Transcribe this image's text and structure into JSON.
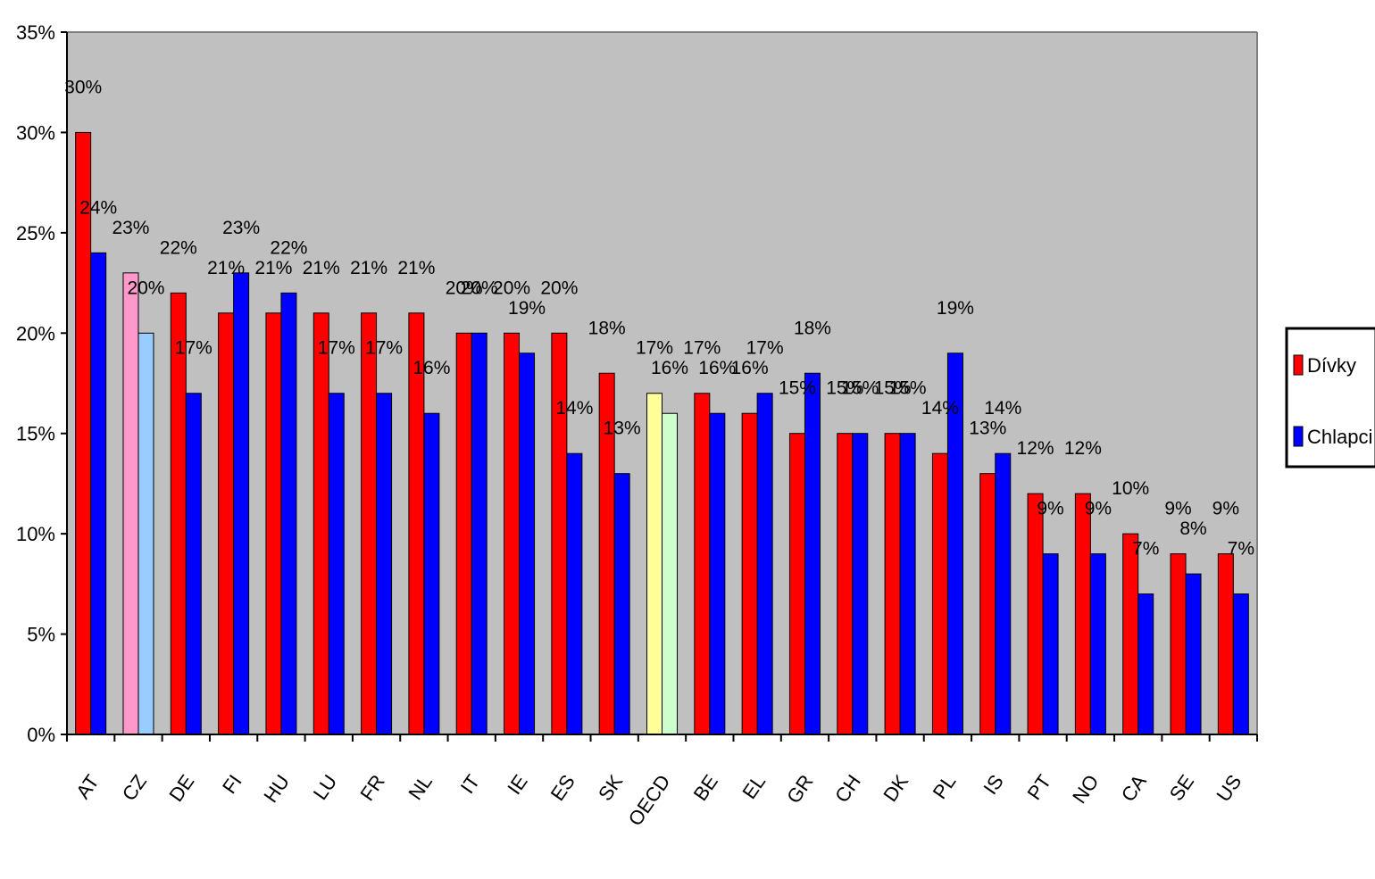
{
  "chart_data": {
    "type": "bar",
    "title": "",
    "xlabel": "",
    "ylabel": "",
    "ylim": [
      0,
      35
    ],
    "yticks": [
      "0%",
      "5%",
      "10%",
      "15%",
      "20%",
      "25%",
      "30%",
      "35%"
    ],
    "grid": false,
    "legend_position": "right",
    "categories": [
      "AT",
      "CZ",
      "DE",
      "FI",
      "HU",
      "LU",
      "FR",
      "NL",
      "IT",
      "IE",
      "ES",
      "SK",
      "OECD",
      "BE",
      "EL",
      "GR",
      "CH",
      "DK",
      "PL",
      "IS",
      "PT",
      "NO",
      "CA",
      "SE",
      "US"
    ],
    "series": [
      {
        "name": "Dívky",
        "color": "#ff0000",
        "values": [
          30,
          23,
          22,
          21,
          21,
          21,
          21,
          21,
          20,
          20,
          20,
          18,
          17,
          17,
          16,
          15,
          15,
          15,
          14,
          13,
          12,
          12,
          10,
          9,
          9
        ],
        "labels": [
          "30%",
          "23%",
          "22%",
          "21%",
          "21%",
          "21%",
          "21%",
          "21%",
          "20%",
          "20%",
          "20%",
          "18%",
          "17%",
          "17%",
          "16%",
          "15%",
          "15%",
          "15%",
          "14%",
          "13%",
          "12%",
          "12%",
          "10%",
          "9%",
          "9%"
        ]
      },
      {
        "name": "Chlapci",
        "color": "#0000ff",
        "values": [
          24,
          20,
          17,
          23,
          22,
          17,
          17,
          16,
          20,
          19,
          14,
          13,
          16,
          16,
          17,
          18,
          15,
          15,
          19,
          14,
          9,
          9,
          7,
          8,
          7
        ],
        "labels": [
          "24%",
          "20%",
          "17%",
          "23%",
          "22%",
          "17%",
          "17%",
          "16%",
          "20%",
          "19%",
          "14%",
          "13%",
          "16%",
          "16%",
          "17%",
          "18%",
          "15%",
          "15%",
          "19%",
          "14%",
          "9%",
          "9%",
          "7%",
          "8%",
          "7%"
        ]
      }
    ],
    "highlight_colors": {
      "CZ": [
        "#ff99cc",
        "#99ccff"
      ],
      "OECD": [
        "#ffff99",
        "#ccffcc"
      ]
    },
    "plot_background": "#c0c0c0"
  }
}
